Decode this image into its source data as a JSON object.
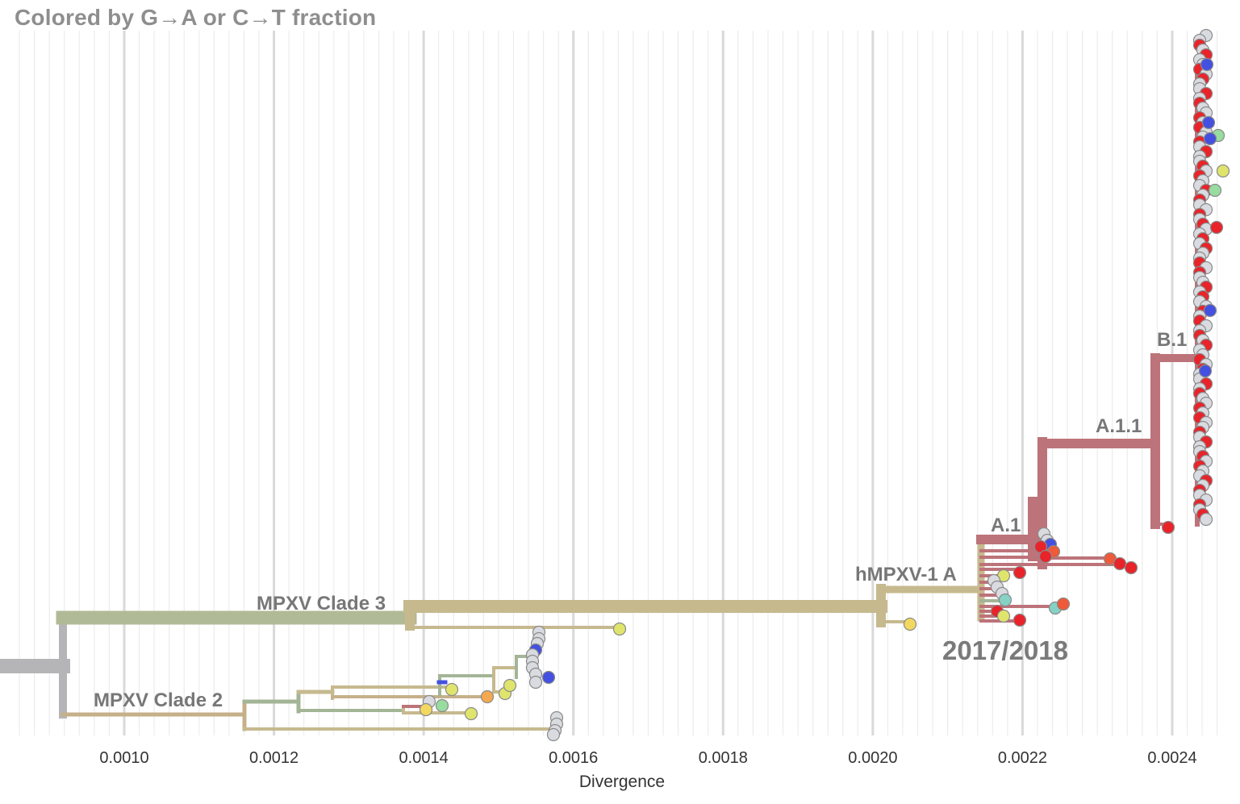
{
  "header": {
    "title": "Colored by G→A or C→T fraction"
  },
  "axis": {
    "label": "Divergence",
    "ticks": [
      "0.0010",
      "0.0012",
      "0.0014",
      "0.0016",
      "0.0018",
      "0.0020",
      "0.0022",
      "0.0024"
    ],
    "xlim": [
      0.00085,
      0.00253
    ]
  },
  "clade_labels": [
    "MPXV Clade 3",
    "MPXV Clade 2",
    "hMPXV-1 A",
    "A.1",
    "A.1.1",
    "B.1"
  ],
  "annotation": "2017/2018",
  "colors": {
    "root": "#b5b5b8",
    "clade3": "#b1ba96",
    "clade2": "#c5b08a",
    "hmpxv": "#c6b98e",
    "lineage": "#bd737a",
    "green_grey": "#a3b596",
    "tip_grey": "#d9dbe0",
    "tip_red": "#e8242a",
    "tip_blue": "#4450e0",
    "tip_yellow": "#dfe56c",
    "tip_gold": "#f2d860",
    "tip_orange": "#ee5a3a",
    "tip_lightorange": "#f4a950",
    "tip_green": "#98dca0",
    "tip_teal": "#86d2c4"
  }
}
